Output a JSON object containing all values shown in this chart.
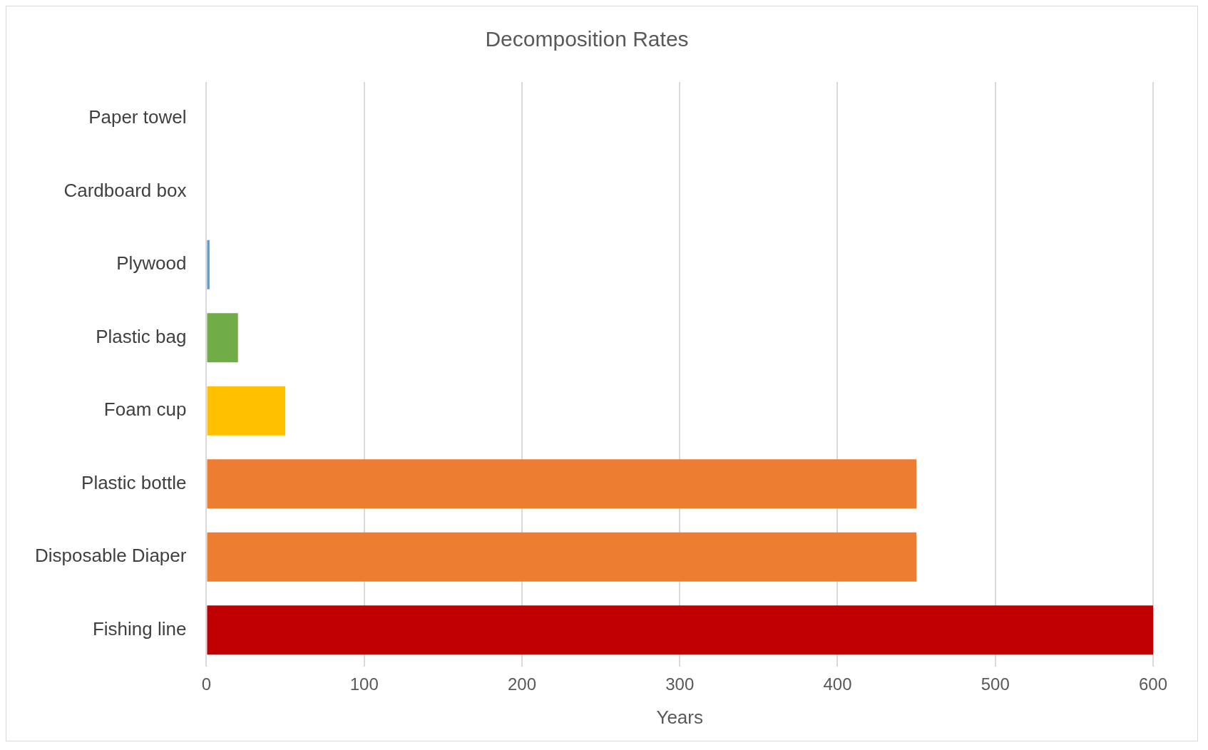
{
  "chart_data": {
    "type": "bar",
    "orientation": "horizontal",
    "title": "Decomposition Rates",
    "xlabel": "Years",
    "categories": [
      "Paper towel",
      "Cardboard box",
      "Plywood",
      "Plastic bag",
      "Foam cup",
      "Plastic bottle",
      "Disposable Diaper",
      "Fishing line"
    ],
    "values": [
      null,
      null,
      2,
      20,
      50,
      450,
      450,
      600
    ],
    "colors": [
      "#5b9bd5",
      "#5b9bd5",
      "#5b9bd5",
      "#70ad47",
      "#ffc000",
      "#ed7d31",
      "#ed7d31",
      "#c00000"
    ],
    "xlim": [
      0,
      600
    ],
    "xticks": [
      0,
      100,
      200,
      300,
      400,
      500,
      600
    ],
    "grid": "x",
    "legend": false
  }
}
